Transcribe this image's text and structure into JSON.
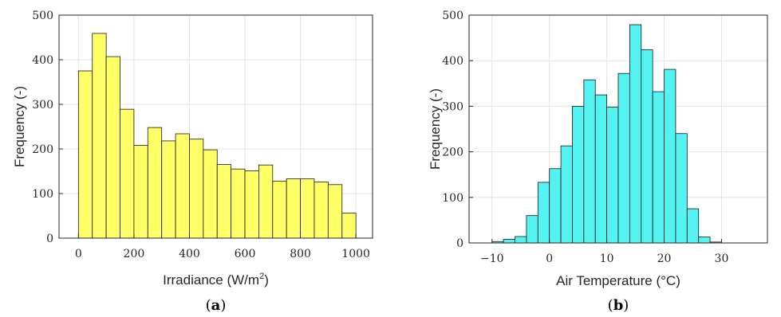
{
  "chart_data": [
    {
      "type": "bar",
      "panel_label": {
        "open": "(",
        "letter": "a",
        "close": ")"
      },
      "xlabel": {
        "text": "Irradiance (W/m",
        "sup": "2",
        "suffix": ")"
      },
      "ylabel": "Frequency (-)",
      "bin_width": 50,
      "bins": [
        {
          "x0": 0,
          "x1": 50,
          "value": 375
        },
        {
          "x0": 50,
          "x1": 100,
          "value": 459
        },
        {
          "x0": 100,
          "x1": 150,
          "value": 407
        },
        {
          "x0": 150,
          "x1": 200,
          "value": 289
        },
        {
          "x0": 200,
          "x1": 250,
          "value": 208
        },
        {
          "x0": 250,
          "x1": 300,
          "value": 248
        },
        {
          "x0": 300,
          "x1": 350,
          "value": 218
        },
        {
          "x0": 350,
          "x1": 400,
          "value": 234
        },
        {
          "x0": 400,
          "x1": 450,
          "value": 222
        },
        {
          "x0": 450,
          "x1": 500,
          "value": 198
        },
        {
          "x0": 500,
          "x1": 550,
          "value": 165
        },
        {
          "x0": 550,
          "x1": 600,
          "value": 155
        },
        {
          "x0": 600,
          "x1": 650,
          "value": 151
        },
        {
          "x0": 650,
          "x1": 700,
          "value": 164
        },
        {
          "x0": 700,
          "x1": 750,
          "value": 128
        },
        {
          "x0": 750,
          "x1": 800,
          "value": 133
        },
        {
          "x0": 800,
          "x1": 850,
          "value": 133
        },
        {
          "x0": 850,
          "x1": 900,
          "value": 126
        },
        {
          "x0": 900,
          "x1": 950,
          "value": 120
        },
        {
          "x0": 950,
          "x1": 1000,
          "value": 56
        }
      ],
      "xlim": [
        -70,
        1060
      ],
      "ylim": [
        0,
        500
      ],
      "xticks": [
        0,
        200,
        400,
        600,
        800,
        1000
      ],
      "yticks": [
        0,
        100,
        200,
        300,
        400,
        500
      ],
      "grid": true,
      "colors": {
        "bar_fill": "#ffff66",
        "bar_edge": "#1a1a1a",
        "grid": "#e3e3e3",
        "axis": "#262626"
      }
    },
    {
      "type": "bar",
      "panel_label": {
        "open": "(",
        "letter": "b",
        "close": ")"
      },
      "xlabel": {
        "text": "Air Temperature (°C)"
      },
      "ylabel": "Frequency (-)",
      "bin_width": 2,
      "bins": [
        {
          "x0": -10,
          "x1": -8,
          "value": 3
        },
        {
          "x0": -8,
          "x1": -6,
          "value": 8
        },
        {
          "x0": -6,
          "x1": -4,
          "value": 14
        },
        {
          "x0": -4,
          "x1": -2,
          "value": 60
        },
        {
          "x0": -2,
          "x1": 0,
          "value": 133
        },
        {
          "x0": 0,
          "x1": 2,
          "value": 163
        },
        {
          "x0": 2,
          "x1": 4,
          "value": 213
        },
        {
          "x0": 4,
          "x1": 6,
          "value": 300
        },
        {
          "x0": 6,
          "x1": 8,
          "value": 358
        },
        {
          "x0": 8,
          "x1": 10,
          "value": 325
        },
        {
          "x0": 10,
          "x1": 12,
          "value": 298
        },
        {
          "x0": 12,
          "x1": 14,
          "value": 372
        },
        {
          "x0": 14,
          "x1": 16,
          "value": 479
        },
        {
          "x0": 16,
          "x1": 18,
          "value": 424
        },
        {
          "x0": 18,
          "x1": 20,
          "value": 332
        },
        {
          "x0": 20,
          "x1": 22,
          "value": 381
        },
        {
          "x0": 22,
          "x1": 24,
          "value": 240
        },
        {
          "x0": 24,
          "x1": 26,
          "value": 75
        },
        {
          "x0": 26,
          "x1": 28,
          "value": 13
        },
        {
          "x0": 28,
          "x1": 30,
          "value": 2
        }
      ],
      "xlim": [
        -14,
        38
      ],
      "ylim": [
        0,
        500
      ],
      "xticks": [
        -10,
        0,
        10,
        20,
        30
      ],
      "yticks": [
        0,
        100,
        200,
        300,
        400,
        500
      ],
      "grid": true,
      "colors": {
        "bar_fill": "#55f2f2",
        "bar_edge": "#1a1a1a",
        "grid": "#e3e3e3",
        "axis": "#262626"
      }
    }
  ]
}
